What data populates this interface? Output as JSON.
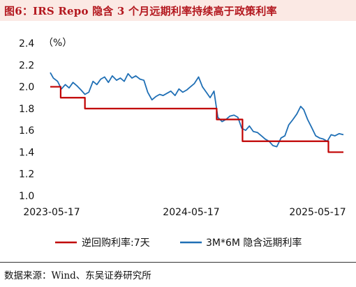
{
  "title": "图6：IRS Repo 隐含 3 个月远期利率持续高于政策利率",
  "source": "数据来源：Wind、东吴证券研究所",
  "chart_data": {
    "type": "line",
    "unit_label": "（%）",
    "ylim": [
      1.0,
      2.4
    ],
    "y_ticks": [
      "2.4",
      "2.2",
      "2.0",
      "1.8",
      "1.6",
      "1.4",
      "1.2",
      "1.0"
    ],
    "x_ticks": [
      "2023-05-17",
      "2024-05-17",
      "2025-05-17"
    ],
    "x_range": [
      "2023-05-17",
      "2025-06-16"
    ],
    "grid": false,
    "legend_position": "bottom",
    "colors": {
      "policy": "#c00000",
      "irs": "#1f6fb5"
    },
    "series": [
      {
        "name": "逆回购利率:7天",
        "step": true,
        "x": [
          "2023-05-17",
          "2023-06-13",
          "2023-08-15",
          "2024-07-22",
          "2024-09-27",
          "2025-05-08",
          "2025-06-16"
        ],
        "values": [
          2.0,
          1.9,
          1.8,
          1.7,
          1.5,
          1.4,
          1.4
        ]
      },
      {
        "name": "3M*6M 隐含远期利率",
        "step": false,
        "x": [
          "2023-05-17",
          "2023-05-25",
          "2023-06-05",
          "2023-06-15",
          "2023-06-25",
          "2023-07-05",
          "2023-07-15",
          "2023-07-25",
          "2023-08-05",
          "2023-08-15",
          "2023-08-25",
          "2023-09-05",
          "2023-09-15",
          "2023-09-25",
          "2023-10-05",
          "2023-10-15",
          "2023-10-25",
          "2023-11-05",
          "2023-11-15",
          "2023-11-25",
          "2023-12-05",
          "2023-12-15",
          "2023-12-25",
          "2024-01-05",
          "2024-01-15",
          "2024-01-25",
          "2024-02-05",
          "2024-02-15",
          "2024-02-25",
          "2024-03-05",
          "2024-03-15",
          "2024-03-25",
          "2024-04-05",
          "2024-04-15",
          "2024-04-25",
          "2024-05-05",
          "2024-05-15",
          "2024-05-25",
          "2024-06-05",
          "2024-06-15",
          "2024-06-25",
          "2024-07-05",
          "2024-07-15",
          "2024-07-25",
          "2024-08-05",
          "2024-08-15",
          "2024-08-25",
          "2024-09-05",
          "2024-09-15",
          "2024-09-25",
          "2024-10-05",
          "2024-10-15",
          "2024-10-25",
          "2024-11-05",
          "2024-11-15",
          "2024-11-25",
          "2024-12-05",
          "2024-12-15",
          "2024-12-25",
          "2025-01-05",
          "2025-01-15",
          "2025-01-25",
          "2025-02-05",
          "2025-02-15",
          "2025-02-25",
          "2025-03-05",
          "2025-03-15",
          "2025-03-25",
          "2025-04-05",
          "2025-04-15",
          "2025-04-25",
          "2025-05-05",
          "2025-05-15",
          "2025-05-25",
          "2025-06-05",
          "2025-06-16"
        ],
        "values": [
          2.13,
          2.08,
          2.05,
          1.98,
          2.02,
          1.99,
          2.04,
          2.01,
          1.97,
          1.93,
          1.95,
          2.05,
          2.02,
          2.07,
          2.09,
          2.04,
          2.1,
          2.06,
          2.08,
          2.05,
          2.12,
          2.08,
          2.1,
          2.07,
          2.06,
          1.95,
          1.88,
          1.91,
          1.93,
          1.92,
          1.94,
          1.96,
          1.92,
          1.98,
          1.95,
          1.97,
          2.0,
          2.03,
          2.09,
          2.0,
          1.95,
          1.9,
          1.96,
          1.72,
          1.68,
          1.7,
          1.73,
          1.74,
          1.72,
          1.62,
          1.6,
          1.64,
          1.59,
          1.58,
          1.55,
          1.52,
          1.5,
          1.46,
          1.45,
          1.53,
          1.55,
          1.65,
          1.7,
          1.75,
          1.82,
          1.79,
          1.7,
          1.63,
          1.55,
          1.53,
          1.52,
          1.5,
          1.56,
          1.55,
          1.57,
          1.56
        ]
      }
    ]
  }
}
